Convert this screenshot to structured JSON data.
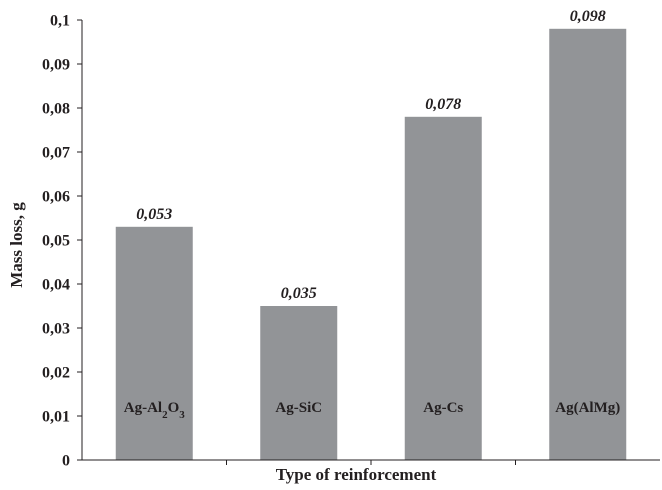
{
  "chart_data": {
    "type": "bar",
    "categories": [
      "Ag-Al2O3",
      "Ag-SiC",
      "Ag-Cs",
      "Ag(AlMg)"
    ],
    "values": [
      0.053,
      0.035,
      0.078,
      0.098
    ],
    "value_labels": [
      "0,053",
      "0,035",
      "0,078",
      "0,098"
    ],
    "category_labels": [
      {
        "parts": [
          {
            "t": "Ag-Al"
          },
          {
            "t": "2",
            "sub": true
          },
          {
            "t": "O"
          },
          {
            "t": "3",
            "sub": true
          }
        ]
      },
      {
        "parts": [
          {
            "t": "Ag-SiC"
          }
        ]
      },
      {
        "parts": [
          {
            "t": "Ag-Cs"
          }
        ]
      },
      {
        "parts": [
          {
            "t": "Ag(AlMg)"
          }
        ]
      }
    ],
    "xlabel": "Type of reinforcement",
    "ylabel": "Mass loss, g",
    "ylim": [
      0,
      0.1
    ],
    "yticks": [
      0,
      0.01,
      0.02,
      0.03,
      0.04,
      0.05,
      0.06,
      0.07,
      0.08,
      0.09,
      0.1
    ],
    "ytick_labels": [
      "0",
      "0,01",
      "0,02",
      "0,03",
      "0,04",
      "0,05",
      "0,06",
      "0,07",
      "0,08",
      "0,09",
      "0,1"
    ],
    "grid": false,
    "legend": "none",
    "bar_color": "#929497"
  }
}
